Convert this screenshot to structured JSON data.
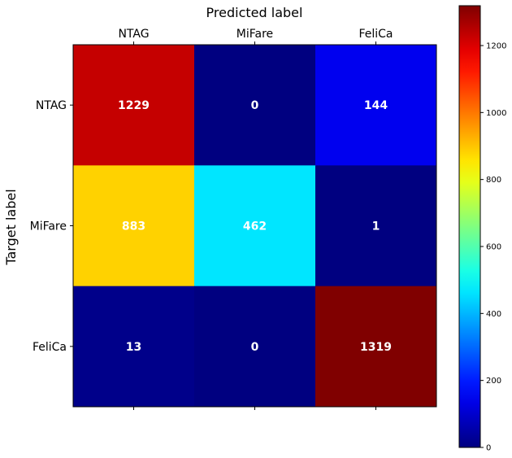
{
  "chart_data": {
    "type": "heatmap",
    "title": "Predicted label",
    "xlabel": "",
    "ylabel": "Target label",
    "x_categories": [
      "NTAG",
      "MiFare",
      "FeliCa"
    ],
    "y_categories": [
      "NTAG",
      "MiFare",
      "FeliCa"
    ],
    "values": [
      [
        1229,
        0,
        144
      ],
      [
        883,
        462,
        1
      ],
      [
        13,
        0,
        1319
      ]
    ],
    "colormap": "jet",
    "colorbar": {
      "min": 0,
      "max": 1319,
      "ticks": [
        0,
        200,
        400,
        600,
        800,
        1000,
        1200
      ]
    },
    "x_axis_position": "top",
    "grid": false
  }
}
